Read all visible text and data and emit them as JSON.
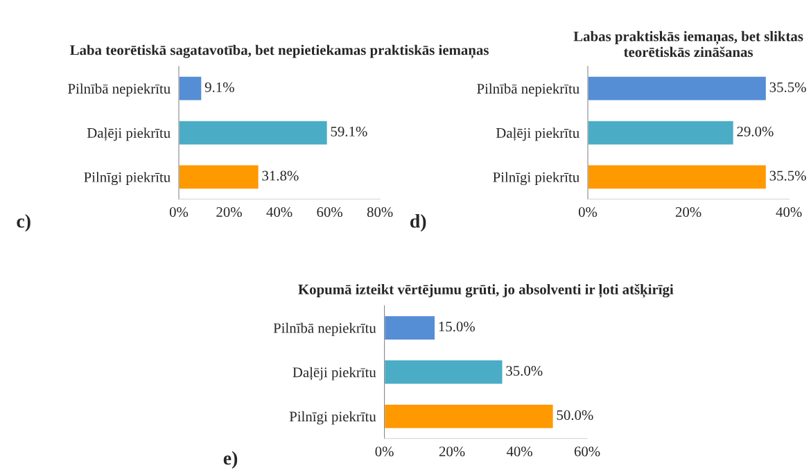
{
  "chart_data": [
    {
      "type": "bar",
      "orientation": "horizontal",
      "title": "Laba teorētiskā sagatavotība, bet nepietiekamas praktiskās iemaņas",
      "categories": [
        "Pilnībā nepiekrītu",
        "Daļēji piekrītu",
        "Pilnīgi piekrītu"
      ],
      "values": [
        9.1,
        59.1,
        31.8
      ],
      "value_labels": [
        "9.1%",
        "59.1%",
        "31.8%"
      ],
      "colors": [
        "#558ed5",
        "#4bacc6",
        "#ff9900"
      ],
      "xlim": [
        0,
        80
      ],
      "xticks": [
        {
          "value": 0,
          "label": "0%"
        },
        {
          "value": 20,
          "label": "20%"
        },
        {
          "value": 40,
          "label": "40%"
        },
        {
          "value": 60,
          "label": "60%"
        },
        {
          "value": 80,
          "label": "80%"
        }
      ],
      "grid": false,
      "legend": false,
      "annotations": [
        "c)"
      ]
    },
    {
      "type": "bar",
      "orientation": "horizontal",
      "title": "Labas praktiskās iemaņas, bet sliktas teorētiskās zināšanas",
      "categories": [
        "Pilnībā nepiekrītu",
        "Daļēji piekrītu",
        "Pilnīgi piekrītu"
      ],
      "values": [
        35.5,
        29.0,
        35.5
      ],
      "value_labels": [
        "35.5%",
        "29.0%",
        "35.5%"
      ],
      "colors": [
        "#558ed5",
        "#4bacc6",
        "#ff9900"
      ],
      "xlim": [
        0,
        40
      ],
      "xticks": [
        {
          "value": 0,
          "label": "0%"
        },
        {
          "value": 20,
          "label": "20%"
        },
        {
          "value": 40,
          "label": "40%"
        }
      ],
      "grid": false,
      "legend": false,
      "annotations": [
        "d)"
      ]
    },
    {
      "type": "bar",
      "orientation": "horizontal",
      "title": "Kopumā izteikt vērtējumu grūti, jo absolventi ir ļoti atšķirīgi",
      "categories": [
        "Pilnībā nepiekrītu",
        "Daļēji piekrītu",
        "Pilnīgi piekrītu"
      ],
      "values": [
        15.0,
        35.0,
        50.0
      ],
      "value_labels": [
        "15.0%",
        "35.0%",
        "50.0%"
      ],
      "colors": [
        "#558ed5",
        "#4bacc6",
        "#ff9900"
      ],
      "xlim": [
        0,
        60
      ],
      "xticks": [
        {
          "value": 0,
          "label": "0%"
        },
        {
          "value": 20,
          "label": "20%"
        },
        {
          "value": 40,
          "label": "40%"
        },
        {
          "value": 60,
          "label": "60%"
        }
      ],
      "grid": false,
      "legend": false,
      "annotations": [
        "e)"
      ]
    }
  ]
}
